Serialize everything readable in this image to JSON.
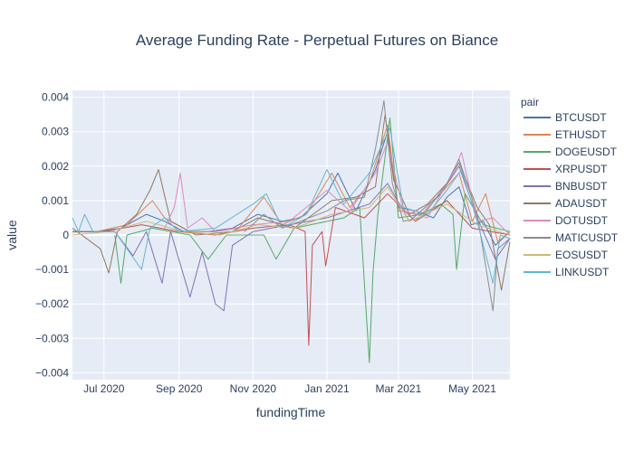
{
  "chart_data": {
    "type": "line",
    "title": "Average Funding Rate - Perpetual Futures on Biance",
    "xlabel": "fundingTime",
    "ylabel": "value",
    "legend_title": "pair",
    "legend_position": "right",
    "grid": true,
    "xlim": [
      "2020-06-05",
      "2021-06-01"
    ],
    "ylim": [
      -0.0042,
      0.0042
    ],
    "x_ticks": [
      {
        "date": "2020-07-01",
        "label": "Jul 2020"
      },
      {
        "date": "2020-09-01",
        "label": "Sep 2020"
      },
      {
        "date": "2020-11-01",
        "label": "Nov 2020"
      },
      {
        "date": "2021-01-01",
        "label": "Jan 2021"
      },
      {
        "date": "2021-03-01",
        "label": "Mar 2021"
      },
      {
        "date": "2021-05-01",
        "label": "May 2021"
      }
    ],
    "y_ticks": [
      {
        "value": 0.004,
        "label": "0.004"
      },
      {
        "value": 0.003,
        "label": "0.003"
      },
      {
        "value": 0.002,
        "label": "0.002"
      },
      {
        "value": 0.001,
        "label": "0.001"
      },
      {
        "value": 0,
        "label": "0"
      },
      {
        "value": -0.001,
        "label": "−0.001"
      },
      {
        "value": -0.002,
        "label": "−0.002"
      },
      {
        "value": -0.003,
        "label": "−0.003"
      },
      {
        "value": -0.004,
        "label": "−0.004"
      }
    ],
    "series": [
      {
        "name": "BTCUSDT",
        "color": "#4c72b0",
        "points": [
          [
            "2020-06-05",
            0.0001
          ],
          [
            "2020-06-25",
            0.0001
          ],
          [
            "2020-07-15",
            0.0002
          ],
          [
            "2020-08-05",
            0.0006
          ],
          [
            "2020-08-20",
            0.0004
          ],
          [
            "2020-09-05",
            0.0001
          ],
          [
            "2020-09-25",
            0.0001
          ],
          [
            "2020-10-15",
            0.0002
          ],
          [
            "2020-11-05",
            0.0006
          ],
          [
            "2020-11-25",
            0.0004
          ],
          [
            "2020-12-10",
            0.0005
          ],
          [
            "2021-01-01",
            0.0012
          ],
          [
            "2021-01-10",
            0.0018
          ],
          [
            "2021-01-25",
            0.0007
          ],
          [
            "2021-02-10",
            0.0019
          ],
          [
            "2021-02-20",
            0.003
          ],
          [
            "2021-03-01",
            0.0008
          ],
          [
            "2021-03-15",
            0.0007
          ],
          [
            "2021-03-30",
            0.0005
          ],
          [
            "2021-04-10",
            0.0011
          ],
          [
            "2021-04-20",
            0.0014
          ],
          [
            "2021-04-30",
            0.0003
          ],
          [
            "2021-05-10",
            0.0004
          ],
          [
            "2021-05-20",
            -0.0003
          ],
          [
            "2021-06-01",
            0.0001
          ]
        ]
      },
      {
        "name": "ETHUSDT",
        "color": "#dd8452",
        "points": [
          [
            "2020-06-05",
            0.0001
          ],
          [
            "2020-06-25",
            0.0001
          ],
          [
            "2020-07-20",
            0.0003
          ],
          [
            "2020-08-10",
            0.001
          ],
          [
            "2020-08-20",
            0.0005
          ],
          [
            "2020-09-10",
            0.0001
          ],
          [
            "2020-10-01",
            0.0001
          ],
          [
            "2020-10-20",
            0.0002
          ],
          [
            "2020-11-10",
            0.0011
          ],
          [
            "2020-11-25",
            0.0003
          ],
          [
            "2020-12-15",
            0.0006
          ],
          [
            "2021-01-05",
            0.0018
          ],
          [
            "2021-01-20",
            0.0008
          ],
          [
            "2021-02-05",
            0.0015
          ],
          [
            "2021-02-20",
            0.0032
          ],
          [
            "2021-03-01",
            0.0007
          ],
          [
            "2021-03-20",
            0.0006
          ],
          [
            "2021-04-05",
            0.0012
          ],
          [
            "2021-04-20",
            0.0018
          ],
          [
            "2021-05-01",
            0.0004
          ],
          [
            "2021-05-12",
            0.0012
          ],
          [
            "2021-05-22",
            -0.0002
          ],
          [
            "2021-06-01",
            0.0001
          ]
        ]
      },
      {
        "name": "DOGEUSDT",
        "color": "#55a868",
        "points": [
          [
            "2020-07-10",
            0.0
          ],
          [
            "2020-07-15",
            -0.0014
          ],
          [
            "2020-07-20",
            0.0
          ],
          [
            "2020-08-10",
            0.0002
          ],
          [
            "2020-09-10",
            0.0
          ],
          [
            "2020-09-25",
            -0.0007
          ],
          [
            "2020-10-10",
            0.0
          ],
          [
            "2020-11-10",
            0.0
          ],
          [
            "2020-11-20",
            -0.0007
          ],
          [
            "2020-12-05",
            0.0002
          ],
          [
            "2021-01-15",
            0.0005
          ],
          [
            "2021-01-28",
            0.0008
          ],
          [
            "2021-02-05",
            -0.0037
          ],
          [
            "2021-02-08",
            -0.0011
          ],
          [
            "2021-02-12",
            0.0006
          ],
          [
            "2021-02-22",
            0.0034
          ],
          [
            "2021-03-01",
            0.0005
          ],
          [
            "2021-03-20",
            0.0006
          ],
          [
            "2021-04-05",
            0.0009
          ],
          [
            "2021-04-15",
            0.0006
          ],
          [
            "2021-04-18",
            -0.001
          ],
          [
            "2021-04-25",
            0.0012
          ],
          [
            "2021-05-10",
            0.0003
          ],
          [
            "2021-06-01",
            0.0001
          ]
        ]
      },
      {
        "name": "XRPUSDT",
        "color": "#c44e52",
        "points": [
          [
            "2020-06-05",
            0.0001
          ],
          [
            "2020-07-01",
            0.0001
          ],
          [
            "2020-08-01",
            0.0003
          ],
          [
            "2020-09-01",
            0.0001
          ],
          [
            "2020-10-01",
            0.0
          ],
          [
            "2020-11-01",
            0.0002
          ],
          [
            "2020-12-01",
            0.0003
          ],
          [
            "2020-12-14",
            0.0001
          ],
          [
            "2020-12-17",
            -0.0032
          ],
          [
            "2020-12-20",
            -0.0003
          ],
          [
            "2020-12-28",
            0.0001
          ],
          [
            "2020-12-31",
            -0.0009
          ],
          [
            "2021-01-08",
            0.0008
          ],
          [
            "2021-02-01",
            0.0005
          ],
          [
            "2021-02-20",
            0.0012
          ],
          [
            "2021-03-15",
            0.0004
          ],
          [
            "2021-04-10",
            0.001
          ],
          [
            "2021-05-01",
            0.0002
          ],
          [
            "2021-06-01",
            0.0
          ]
        ]
      },
      {
        "name": "BNBUSDT",
        "color": "#8172b3",
        "points": [
          [
            "2020-06-05",
            0.0001
          ],
          [
            "2020-07-10",
            0.0001
          ],
          [
            "2020-07-25",
            -0.0006
          ],
          [
            "2020-08-05",
            0.0001
          ],
          [
            "2020-08-18",
            -0.0014
          ],
          [
            "2020-08-25",
            0.0001
          ],
          [
            "2020-09-10",
            -0.0018
          ],
          [
            "2020-09-20",
            -0.0005
          ],
          [
            "2020-10-01",
            -0.002
          ],
          [
            "2020-10-08",
            -0.0022
          ],
          [
            "2020-10-15",
            -0.0003
          ],
          [
            "2020-11-01",
            0.0001
          ],
          [
            "2020-12-01",
            0.0003
          ],
          [
            "2021-01-01",
            0.0005
          ],
          [
            "2021-02-05",
            0.0009
          ],
          [
            "2021-02-20",
            0.0015
          ],
          [
            "2021-03-10",
            0.0004
          ],
          [
            "2021-04-05",
            0.0012
          ],
          [
            "2021-04-20",
            0.002
          ],
          [
            "2021-05-05",
            0.0005
          ],
          [
            "2021-05-20",
            -0.0007
          ],
          [
            "2021-06-01",
            -0.0001
          ]
        ]
      },
      {
        "name": "ADAUSDT",
        "color": "#937860",
        "points": [
          [
            "2020-06-05",
            0.0002
          ],
          [
            "2020-06-28",
            -0.0004
          ],
          [
            "2020-07-05",
            -0.0011
          ],
          [
            "2020-07-12",
            0.0001
          ],
          [
            "2020-07-28",
            0.0006
          ],
          [
            "2020-08-08",
            0.0013
          ],
          [
            "2020-08-15",
            0.0019
          ],
          [
            "2020-08-25",
            0.0004
          ],
          [
            "2020-09-15",
            0.0
          ],
          [
            "2020-10-15",
            0.0001
          ],
          [
            "2020-11-05",
            0.0005
          ],
          [
            "2020-12-05",
            0.0002
          ],
          [
            "2021-01-05",
            0.001
          ],
          [
            "2021-01-25",
            0.0011
          ],
          [
            "2021-02-10",
            0.0014
          ],
          [
            "2021-02-18",
            0.0035
          ],
          [
            "2021-02-25",
            0.0016
          ],
          [
            "2021-03-10",
            0.0006
          ],
          [
            "2021-03-25",
            0.0009
          ],
          [
            "2021-04-10",
            0.0015
          ],
          [
            "2021-04-20",
            0.0021
          ],
          [
            "2021-05-05",
            0.0008
          ],
          [
            "2021-05-15",
            0.0003
          ],
          [
            "2021-05-25",
            -0.0016
          ],
          [
            "2021-06-01",
            -0.0002
          ]
        ]
      },
      {
        "name": "DOTUSDT",
        "color": "#da8bc3",
        "points": [
          [
            "2020-08-20",
            0.0002
          ],
          [
            "2020-08-28",
            0.0008
          ],
          [
            "2020-09-02",
            0.0018
          ],
          [
            "2020-09-08",
            0.0002
          ],
          [
            "2020-09-20",
            0.0005
          ],
          [
            "2020-10-01",
            0.0001
          ],
          [
            "2020-11-01",
            0.0003
          ],
          [
            "2020-12-01",
            0.0004
          ],
          [
            "2021-01-01",
            0.0013
          ],
          [
            "2021-01-20",
            0.0007
          ],
          [
            "2021-02-10",
            0.0018
          ],
          [
            "2021-02-20",
            0.0027
          ],
          [
            "2021-03-05",
            0.0007
          ],
          [
            "2021-03-25",
            0.0005
          ],
          [
            "2021-04-15",
            0.0018
          ],
          [
            "2021-04-22",
            0.0024
          ],
          [
            "2021-05-05",
            0.0004
          ],
          [
            "2021-05-18",
            0.0005
          ],
          [
            "2021-06-01",
            0.0
          ]
        ]
      },
      {
        "name": "MATICUSDT",
        "color": "#8c8c8c",
        "points": [
          [
            "2020-10-25",
            0.0001
          ],
          [
            "2020-11-10",
            0.0006
          ],
          [
            "2020-11-25",
            0.0002
          ],
          [
            "2020-12-10",
            0.0004
          ],
          [
            "2021-01-01",
            0.0007
          ],
          [
            "2021-01-15",
            0.001
          ],
          [
            "2021-02-01",
            0.0011
          ],
          [
            "2021-02-10",
            0.0025
          ],
          [
            "2021-02-17",
            0.0039
          ],
          [
            "2021-02-24",
            0.0015
          ],
          [
            "2021-03-05",
            0.0004
          ],
          [
            "2021-03-20",
            0.0005
          ],
          [
            "2021-04-10",
            0.0015
          ],
          [
            "2021-04-20",
            0.0022
          ],
          [
            "2021-05-05",
            0.0006
          ],
          [
            "2021-05-18",
            -0.0022
          ],
          [
            "2021-05-22",
            -0.0004
          ],
          [
            "2021-06-01",
            -0.0001
          ]
        ]
      },
      {
        "name": "EOSUSDT",
        "color": "#ccb974",
        "points": [
          [
            "2020-06-05",
            0.0
          ],
          [
            "2020-07-05",
            0.0001
          ],
          [
            "2020-08-05",
            0.0004
          ],
          [
            "2020-09-05",
            0.0001
          ],
          [
            "2020-10-05",
            0.0
          ],
          [
            "2020-11-05",
            0.0003
          ],
          [
            "2020-12-05",
            0.0002
          ],
          [
            "2021-01-05",
            0.0006
          ],
          [
            "2021-02-05",
            0.0008
          ],
          [
            "2021-02-20",
            0.0014
          ],
          [
            "2021-03-10",
            0.0004
          ],
          [
            "2021-04-10",
            0.0009
          ],
          [
            "2021-05-05",
            0.0003
          ],
          [
            "2021-06-01",
            0.0
          ]
        ]
      },
      {
        "name": "LINKUSDT",
        "color": "#64b5cd",
        "points": [
          [
            "2020-06-05",
            0.0005
          ],
          [
            "2020-06-10",
            0.0001
          ],
          [
            "2020-06-15",
            0.0006
          ],
          [
            "2020-06-22",
            0.0001
          ],
          [
            "2020-07-10",
            0.0001
          ],
          [
            "2020-07-22",
            -0.0005
          ],
          [
            "2020-08-01",
            -0.001
          ],
          [
            "2020-08-08",
            0.0002
          ],
          [
            "2020-08-20",
            0.0005
          ],
          [
            "2020-09-01",
            0.0001
          ],
          [
            "2020-10-01",
            0.0002
          ],
          [
            "2020-11-01",
            0.0009
          ],
          [
            "2020-11-12",
            0.0012
          ],
          [
            "2020-11-25",
            0.0002
          ],
          [
            "2020-12-15",
            0.0006
          ],
          [
            "2021-01-01",
            0.0019
          ],
          [
            "2021-01-15",
            0.0009
          ],
          [
            "2021-02-05",
            0.0018
          ],
          [
            "2021-02-15",
            0.0026
          ],
          [
            "2021-02-22",
            0.0031
          ],
          [
            "2021-03-05",
            0.0008
          ],
          [
            "2021-03-25",
            0.0006
          ],
          [
            "2021-04-10",
            0.0013
          ],
          [
            "2021-04-22",
            0.0019
          ],
          [
            "2021-05-05",
            0.0004
          ],
          [
            "2021-05-18",
            -0.0014
          ],
          [
            "2021-05-24",
            0.0
          ],
          [
            "2021-06-01",
            -0.0001
          ]
        ]
      }
    ]
  }
}
